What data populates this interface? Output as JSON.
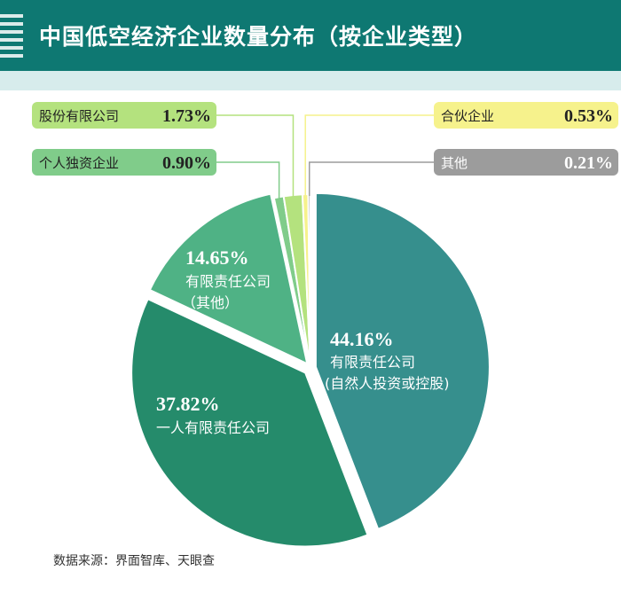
{
  "header": {
    "title": "中国低空经济企业数量分布（按企业类型）"
  },
  "source": "数据来源：界面智库、天眼查",
  "colors": {
    "header_bg": "#0e7872",
    "band": "#d7ecec"
  },
  "chart_data": {
    "type": "pie",
    "slices": [
      {
        "label": "有限责任公司",
        "sublabel": "(自然人投资或控股)",
        "value": 44.16,
        "value_label": "44.16%",
        "color": "#368f8d"
      },
      {
        "label": "一人有限责任公司",
        "sublabel": "",
        "value": 37.82,
        "value_label": "37.82%",
        "color": "#258b6b"
      },
      {
        "label": "有限责任公司",
        "sublabel": "（其他）",
        "value": 14.65,
        "value_label": "14.65%",
        "color": "#4fb285"
      },
      {
        "label": "个人独资企业",
        "sublabel": "",
        "value": 0.9,
        "value_label": "0.90%",
        "color": "#80cc8a"
      },
      {
        "label": "股份有限公司",
        "sublabel": "",
        "value": 1.73,
        "value_label": "1.73%",
        "color": "#b4e27e"
      },
      {
        "label": "合伙企业",
        "sublabel": "",
        "value": 0.53,
        "value_label": "0.53%",
        "color": "#f6f28c"
      },
      {
        "label": "其他",
        "sublabel": "",
        "value": 0.21,
        "value_label": "0.21%",
        "color": "#9c9c9c"
      }
    ]
  }
}
